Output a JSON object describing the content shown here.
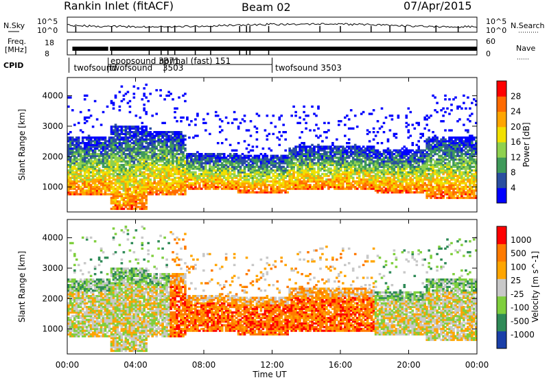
{
  "header": {
    "station": "Rankin Inlet (fitACF)",
    "beam": "Beam 02",
    "date": "07/Apr/2015"
  },
  "strip_labels": {
    "nsky": "N.Sky",
    "freq_line1": "Freq.",
    "freq_line2": "[MHz]",
    "cpid": "CPID",
    "nsearch": "N.Search",
    "nave": "Nave"
  },
  "strip_ticks": {
    "nsky_left": [
      "10^5",
      "10^0"
    ],
    "nsky_right": [
      "10^5",
      "10^0"
    ],
    "freq_left": [
      "18",
      "8"
    ],
    "nave_right": [
      "60",
      "0"
    ]
  },
  "cpid_labels": [
    {
      "text": "twofsound",
      "t": 0.3
    },
    {
      "text": "twofsound",
      "t": 2.4
    },
    {
      "text": "epopsound  3371",
      "t": 2.45
    },
    {
      "text": "normal (fast)  151",
      "t": 5.7
    },
    {
      "text": "3503",
      "t": 5.5
    },
    {
      "text": "twofsound  3503",
      "t": 12.1
    }
  ],
  "colors": {
    "power_scale": [
      "#0000ff",
      "#2a4fa0",
      "#3f9a5a",
      "#8fd14f",
      "#f2e000",
      "#ffa500",
      "#ff6a00",
      "#ff0000"
    ],
    "velocity_scale": [
      "#1a3fa8",
      "#2f8a57",
      "#7fcf3d",
      "#c8c8c8",
      "#ffa500",
      "#ff7a00",
      "#ff0000"
    ],
    "frame": "#000000"
  },
  "chart_data": [
    {
      "type": "heatmap",
      "name": "Power",
      "xlabel": "",
      "ylabel": "Slant Range [km]",
      "xlim": [
        0,
        24
      ],
      "ylim": [
        180,
        4600
      ],
      "y_ticks": [
        "1000",
        "2000",
        "3000",
        "4000"
      ],
      "colorbar_label": "Power [dB]",
      "colorbar_ticks": [
        "28",
        "24",
        "20",
        "16",
        "12",
        "8",
        "4"
      ],
      "colorbar_range": [
        0,
        32
      ]
    },
    {
      "type": "heatmap",
      "name": "Velocity",
      "xlabel": "Time UT",
      "ylabel": "Slant Range [km]",
      "xlim": [
        0,
        24
      ],
      "ylim": [
        180,
        4600
      ],
      "x_ticks": [
        "00:00",
        "04:00",
        "08:00",
        "12:00",
        "16:00",
        "20:00",
        "00:00"
      ],
      "y_ticks": [
        "1000",
        "2000",
        "3000",
        "4000"
      ],
      "colorbar_label": "Velocity  [m s^-1]",
      "colorbar_ticks": [
        "1000",
        "500",
        "100",
        "25",
        "-25",
        "-100",
        "-500",
        "-1000"
      ]
    }
  ]
}
